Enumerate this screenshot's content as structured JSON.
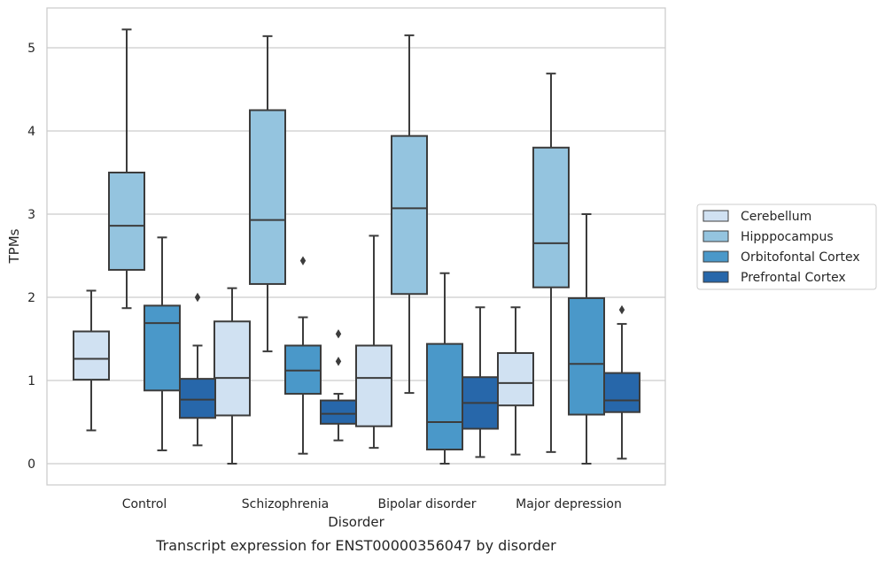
{
  "chart_data": {
    "type": "box",
    "caption": "Transcript expression for ENST00000356047 by disorder",
    "xlabel": "Disorder",
    "ylabel": "TPMs",
    "ylim": [
      -0.25,
      5.5
    ],
    "yticks": [
      "0",
      "1",
      "2",
      "3",
      "4",
      "5"
    ],
    "grid": true,
    "legend_position": "right",
    "categories": [
      "Control",
      "Schizophrenia",
      "Bipolar disorder",
      "Major depression"
    ],
    "series": [
      {
        "name": "Cerebellum",
        "color": "#d0e1f2",
        "boxes": [
          {
            "whisker_low": 0.4,
            "q1": 1.01,
            "median": 1.26,
            "q3": 1.59,
            "whisker_high": 2.08,
            "outliers": []
          },
          {
            "whisker_low": 0.0,
            "q1": 0.58,
            "median": 1.03,
            "q3": 1.71,
            "whisker_high": 2.11,
            "outliers": []
          },
          {
            "whisker_low": 0.19,
            "q1": 0.45,
            "median": 1.03,
            "q3": 1.42,
            "whisker_high": 2.74,
            "outliers": []
          },
          {
            "whisker_low": 0.11,
            "q1": 0.7,
            "median": 0.97,
            "q3": 1.33,
            "whisker_high": 1.88,
            "outliers": []
          }
        ]
      },
      {
        "name": "Hipppocampus",
        "color": "#94c4df",
        "boxes": [
          {
            "whisker_low": 1.87,
            "q1": 2.33,
            "median": 2.86,
            "q3": 3.5,
            "whisker_high": 5.22,
            "outliers": []
          },
          {
            "whisker_low": 1.35,
            "q1": 2.16,
            "median": 2.93,
            "q3": 4.25,
            "whisker_high": 5.14,
            "outliers": []
          },
          {
            "whisker_low": 0.85,
            "q1": 2.04,
            "median": 3.07,
            "q3": 3.94,
            "whisker_high": 5.15,
            "outliers": []
          },
          {
            "whisker_low": 0.14,
            "q1": 2.12,
            "median": 2.65,
            "q3": 3.8,
            "whisker_high": 4.69,
            "outliers": []
          }
        ]
      },
      {
        "name": "Orbitofontal Cortex",
        "color": "#4a98c9",
        "boxes": [
          {
            "whisker_low": 0.16,
            "q1": 0.88,
            "median": 1.69,
            "q3": 1.9,
            "whisker_high": 2.72,
            "outliers": []
          },
          {
            "whisker_low": 0.12,
            "q1": 0.84,
            "median": 1.12,
            "q3": 1.42,
            "whisker_high": 1.76,
            "outliers": [
              2.44
            ]
          },
          {
            "whisker_low": 0.0,
            "q1": 0.17,
            "median": 0.5,
            "q3": 1.44,
            "whisker_high": 2.29,
            "outliers": []
          },
          {
            "whisker_low": 0.0,
            "q1": 0.59,
            "median": 1.2,
            "q3": 1.99,
            "whisker_high": 3.0,
            "outliers": []
          }
        ]
      },
      {
        "name": "Prefrontal Cortex",
        "color": "#2767aa",
        "boxes": [
          {
            "whisker_low": 0.22,
            "q1": 0.55,
            "median": 0.77,
            "q3": 1.02,
            "whisker_high": 1.42,
            "outliers": [
              2.0
            ]
          },
          {
            "whisker_low": 0.28,
            "q1": 0.48,
            "median": 0.6,
            "q3": 0.76,
            "whisker_high": 0.84,
            "outliers": [
              1.23,
              1.56
            ]
          },
          {
            "whisker_low": 0.08,
            "q1": 0.42,
            "median": 0.73,
            "q3": 1.04,
            "whisker_high": 1.88,
            "outliers": []
          },
          {
            "whisker_low": 0.06,
            "q1": 0.62,
            "median": 0.76,
            "q3": 1.09,
            "whisker_high": 1.68,
            "outliers": [
              1.85
            ]
          }
        ]
      }
    ]
  }
}
